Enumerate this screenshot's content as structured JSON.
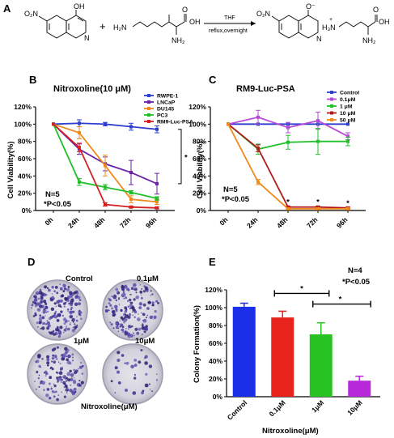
{
  "panels": {
    "a": "A",
    "b": "B",
    "c": "C",
    "d": "D",
    "e": "E"
  },
  "reaction": {
    "mol1": {
      "no2": "O₂N",
      "oh": "OH",
      "n": "N"
    },
    "plus": "+",
    "mol2": {
      "h2n": "H₂N",
      "oh": "OH",
      "o": "O",
      "nh2": "NH₂"
    },
    "reagent": "THF",
    "conditions": "reflux,overnight",
    "product": {
      "no2": "O₂N",
      "o_minus": "O⁻",
      "n": "N",
      "h3n": "H₃N",
      "plus": "+",
      "oh": "OH",
      "o": "O",
      "nh2": "NH₂"
    }
  },
  "chart_data": [
    {
      "id": "B",
      "type": "line",
      "title": "Nitroxoline(10 μM)",
      "xlabel": "",
      "ylabel": "Cell Viability(%)",
      "categories": [
        "0h",
        "24h",
        "48h",
        "72h",
        "96h"
      ],
      "ylim": [
        0,
        120
      ],
      "yticks": [
        "0%",
        "20%",
        "40%",
        "60%",
        "80%",
        "100%",
        "120%"
      ],
      "series": [
        {
          "name": "RWPE-1",
          "color": "#2e3fd0",
          "values": [
            100,
            101,
            100,
            97,
            94
          ],
          "errors": [
            0,
            4,
            2,
            4,
            4
          ]
        },
        {
          "name": "LNCaP",
          "color": "#6b22a6",
          "values": [
            100,
            71,
            54,
            44,
            31
          ],
          "errors": [
            0,
            6,
            8,
            14,
            12
          ]
        },
        {
          "name": "DU145",
          "color": "#f08a1c",
          "values": [
            100,
            90,
            52,
            13,
            10
          ],
          "errors": [
            0,
            7,
            12,
            4,
            3
          ]
        },
        {
          "name": "PC3",
          "color": "#21c02a",
          "values": [
            100,
            33,
            27,
            21,
            14
          ],
          "errors": [
            0,
            4,
            3,
            2,
            2
          ]
        },
        {
          "name": "RM9-Luc-PSA",
          "color": "#d42020",
          "values": [
            100,
            73,
            7,
            4,
            3
          ],
          "errors": [
            0,
            5,
            2,
            1,
            1
          ]
        }
      ],
      "annotations": {
        "n": "N=5",
        "p": "*P<0.05",
        "sig": "*"
      }
    },
    {
      "id": "C",
      "type": "line",
      "title": "RM9-Luc-PSA",
      "xlabel": "",
      "ylabel": "Cell Viability(%)",
      "categories": [
        "0h",
        "24h",
        "48h",
        "72h",
        "96h"
      ],
      "ylim": [
        0,
        120
      ],
      "yticks": [
        "0%",
        "20%",
        "40%",
        "60%",
        "80%",
        "100%",
        "120%"
      ],
      "series": [
        {
          "name": "Control",
          "color": "#2e3fd0",
          "values": [
            100,
            100,
            100,
            100,
            100
          ],
          "errors": [
            0,
            0,
            0,
            0,
            0
          ]
        },
        {
          "name": "0.1μM",
          "color": "#b54ad6",
          "values": [
            100,
            108,
            96,
            104,
            86
          ],
          "errors": [
            0,
            8,
            6,
            10,
            4
          ]
        },
        {
          "name": "1 μM",
          "color": "#21c02a",
          "values": [
            100,
            71,
            79,
            80,
            80
          ],
          "errors": [
            0,
            6,
            8,
            15,
            5
          ]
        },
        {
          "name": "10 μM",
          "color": "#b31b1b",
          "values": [
            100,
            72,
            4,
            4,
            3
          ],
          "errors": [
            0,
            4,
            1,
            1,
            1
          ]
        },
        {
          "name": "50 μM",
          "color": "#f08a1c",
          "values": [
            100,
            33,
            2,
            2,
            2
          ],
          "errors": [
            0,
            3,
            1,
            1,
            1
          ]
        }
      ],
      "annotations": {
        "n": "N=5",
        "p": "*P<0.05",
        "stars": [
          "*",
          "*",
          "*"
        ]
      }
    },
    {
      "id": "E",
      "type": "bar",
      "title": "",
      "xlabel": "Nitroxoline(μM)",
      "ylabel": "Colony Formation(%)",
      "categories": [
        "Control",
        "0.1μM",
        "1μM",
        "10μM"
      ],
      "values": [
        101,
        89,
        70,
        18
      ],
      "errors": [
        4,
        7,
        13,
        5
      ],
      "colors": [
        "#1b2ee8",
        "#e8231b",
        "#28c322",
        "#b628d9"
      ],
      "ylim": [
        0,
        120
      ],
      "yticks": [
        "0%",
        "20%",
        "40%",
        "60%",
        "80%",
        "100%",
        "120%"
      ],
      "annotations": {
        "n": "N=4",
        "p": "*P<0.05",
        "sig": [
          "*",
          "*"
        ]
      }
    }
  ],
  "colony": {
    "labels": [
      "Control",
      "0.1μM",
      "1μM",
      "10μM"
    ],
    "xlabel": "Nitroxoline(μM)"
  }
}
